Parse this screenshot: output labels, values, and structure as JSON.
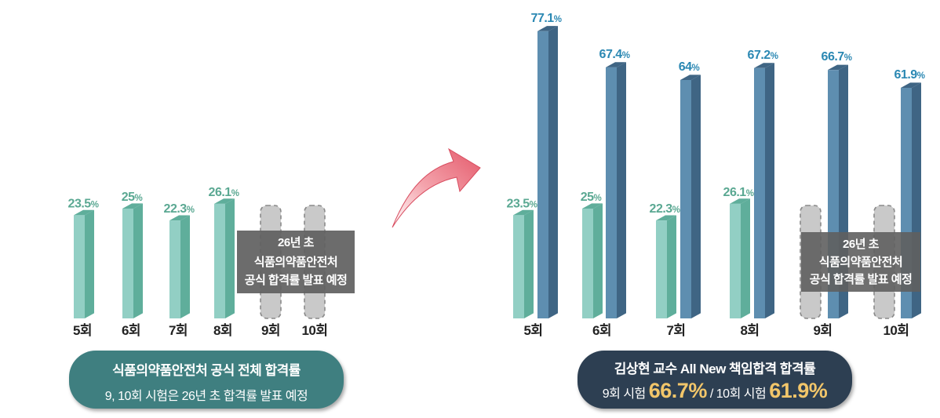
{
  "left_chart": {
    "categories": [
      "5회",
      "6회",
      "7회",
      "8회",
      "9회",
      "10회"
    ],
    "official_rate": [
      23.5,
      25,
      22.3,
      26.1,
      null,
      null
    ],
    "official_labels": [
      "23.5%",
      "25%",
      "22.3%",
      "26.1%",
      "",
      ""
    ],
    "notice": [
      "26년 초",
      "식품의약품안전처",
      "공식 합격률 발표 예정"
    ],
    "caption_title": "식품의약품안전처 공식 전체 합격률",
    "caption_sub": "9, 10회 시험은 26년 초 합격률 발표 예정"
  },
  "right_chart": {
    "categories": [
      "5회",
      "6회",
      "7회",
      "8회",
      "9회",
      "10회"
    ],
    "official_rate": [
      23.5,
      25,
      22.3,
      26.1,
      null,
      null
    ],
    "official_labels": [
      "23.5%",
      "25%",
      "22.3%",
      "26.1%",
      "",
      ""
    ],
    "professor_rate": [
      77.1,
      67.4,
      64,
      67.2,
      66.7,
      61.9
    ],
    "professor_labels": [
      "77.1%",
      "67.4%",
      "64%",
      "67.2%",
      "66.7%",
      "61.9%"
    ],
    "notice": [
      "26년 초",
      "식품의약품안전처",
      "공식 합격률 발표 예정"
    ],
    "caption_title": "김상현 교수 All New 책임합격 합격률",
    "caption_exam9": "9회 시험",
    "caption_value9": "66.7%",
    "caption_slash": "/",
    "caption_exam10": "10회 시험",
    "caption_value10": "61.9%"
  },
  "chart_data": [
    {
      "type": "bar",
      "categories": [
        "5회",
        "6회",
        "7회",
        "8회",
        "9회",
        "10회"
      ],
      "series": [
        {
          "values": [
            23.5,
            25,
            22.3,
            26.1,
            null,
            null
          ]
        }
      ]
    },
    {
      "type": "bar",
      "categories": [
        "5회",
        "6회",
        "7회",
        "8회",
        "9회",
        "10회"
      ],
      "series": [
        {
          "values": [
            23.5,
            25,
            22.3,
            26.1,
            null,
            null
          ]
        },
        {
          "values": [
            77.1,
            67.4,
            64,
            67.2,
            66.7,
            61.9
          ]
        }
      ]
    }
  ],
  "colors": {
    "teal_front": "#92cfc4",
    "teal_side": "#5fae9b",
    "teal_label": "#5aa892",
    "blue_front": "#5e8eb0",
    "blue_side": "#3f6584",
    "blue_label": "#2b88b3",
    "placeholder": "#c9c9c9",
    "notice_bg": "#5f5f5f",
    "arrow": "#e9717f"
  }
}
